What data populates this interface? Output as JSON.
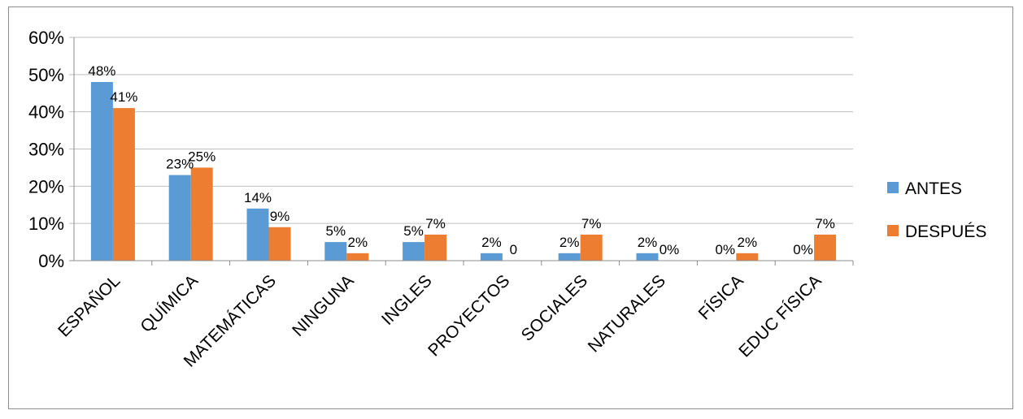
{
  "chart_data": {
    "type": "bar",
    "categories": [
      "ESPAÑOL",
      "QUÍMICA",
      "MATEMÁTICAS",
      "NINGUNA",
      "INGLES",
      "PROYECTOS",
      "SOCIALES",
      "NATURALES",
      "FÍSICA",
      "EDUC FÍSICA"
    ],
    "series": [
      {
        "name": "ANTES",
        "color": "#5B9BD5",
        "values": [
          48,
          23,
          14,
          5,
          5,
          2,
          2,
          2,
          0,
          0
        ],
        "labels": [
          "48%",
          "23%",
          "14%",
          "5%",
          "5%",
          "2%",
          "2%",
          "2%",
          "0%",
          "0%"
        ]
      },
      {
        "name": "DESPUÉS",
        "color": "#ED7D31",
        "values": [
          41,
          25,
          9,
          2,
          7,
          0,
          7,
          0,
          2,
          7
        ],
        "labels": [
          "41%",
          "25%",
          "9%",
          "2%",
          "7%",
          "0",
          "7%",
          "0%",
          "2%",
          "7%"
        ]
      }
    ],
    "y_ticks": [
      "0%",
      "10%",
      "20%",
      "30%",
      "40%",
      "50%",
      "60%"
    ],
    "ylim": [
      0,
      60
    ],
    "grid": true,
    "gridline_color": "#bfbfbf",
    "legend_position": "right",
    "title": "",
    "xlabel": "",
    "ylabel": ""
  }
}
